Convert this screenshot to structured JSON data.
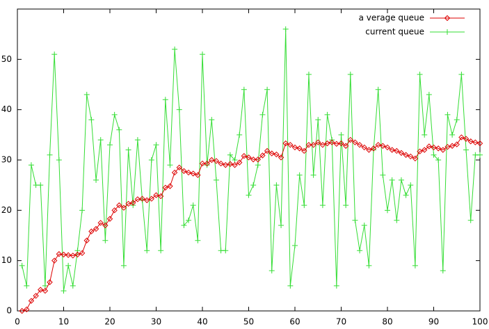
{
  "chart_data": {
    "type": "line",
    "x": [
      1,
      2,
      3,
      4,
      5,
      6,
      7,
      8,
      9,
      10,
      11,
      12,
      13,
      14,
      15,
      16,
      17,
      18,
      19,
      20,
      21,
      22,
      23,
      24,
      25,
      26,
      27,
      28,
      29,
      30,
      31,
      32,
      33,
      34,
      35,
      36,
      37,
      38,
      39,
      40,
      41,
      42,
      43,
      44,
      45,
      46,
      47,
      48,
      49,
      50,
      51,
      52,
      53,
      54,
      55,
      56,
      57,
      58,
      59,
      60,
      61,
      62,
      63,
      64,
      65,
      66,
      67,
      68,
      69,
      70,
      71,
      72,
      73,
      74,
      75,
      76,
      77,
      78,
      79,
      80,
      81,
      82,
      83,
      84,
      85,
      86,
      87,
      88,
      89,
      90,
      91,
      92,
      93,
      94,
      95,
      96,
      97,
      98,
      99,
      100
    ],
    "series": [
      {
        "name": "a verage queue",
        "color": "#dd0000",
        "marker": "diamond",
        "values": [
          0,
          0.3,
          2,
          3,
          4.2,
          4,
          5.7,
          10,
          11.3,
          11.2,
          11.1,
          11,
          11.2,
          11.5,
          14,
          15.8,
          16.3,
          17.5,
          17,
          18.3,
          20,
          21,
          20.5,
          21.3,
          21.5,
          22.2,
          22.3,
          22,
          22.3,
          23,
          22.8,
          24.5,
          24.8,
          27.5,
          28.5,
          27.8,
          27.5,
          27.3,
          27,
          29.3,
          29.3,
          30,
          29.8,
          29.3,
          29,
          29.2,
          29,
          29.5,
          30.8,
          30.5,
          30.1,
          30.1,
          30.9,
          31.8,
          31.3,
          31.1,
          30.5,
          33.3,
          33,
          32.5,
          32.3,
          31.8,
          33,
          33,
          33.5,
          33,
          33.3,
          33.5,
          33.2,
          33.3,
          32.8,
          34,
          33.5,
          33,
          32.5,
          32,
          32.3,
          33,
          32.8,
          32.5,
          32,
          31.8,
          31.4,
          31,
          30.7,
          30.3,
          31.7,
          32,
          32.7,
          32.5,
          32.3,
          32,
          32.6,
          32.8,
          33.1,
          34.5,
          34.2,
          33.7,
          33.5,
          33.3
        ]
      },
      {
        "name": "current queue",
        "color": "#33dd33",
        "marker": "plus",
        "values": [
          9,
          5,
          29,
          25,
          25,
          5,
          31,
          51,
          30,
          4,
          9,
          5,
          12,
          20,
          43,
          38,
          26,
          34,
          14,
          33,
          39,
          36,
          9,
          32,
          21,
          34,
          22,
          12,
          30,
          33,
          12,
          42,
          29,
          52,
          40,
          17,
          18,
          21,
          14,
          51,
          29,
          38,
          26,
          12,
          12,
          31,
          30,
          35,
          44,
          23,
          25,
          29,
          39,
          44,
          8,
          25,
          17,
          56,
          5,
          13,
          27,
          21,
          47,
          27,
          38,
          21,
          39,
          34,
          5,
          35,
          21,
          47,
          18,
          12,
          17,
          9,
          32,
          44,
          27,
          20,
          26,
          18,
          26,
          23,
          25,
          9,
          47,
          35,
          43,
          31,
          30,
          8,
          39,
          35,
          38,
          47,
          32,
          18,
          31,
          31
        ]
      }
    ],
    "xlim": [
      0,
      100
    ],
    "xticks": [
      0,
      10,
      20,
      30,
      40,
      50,
      60,
      70,
      80,
      90,
      100
    ],
    "ylim": [
      0,
      60
    ],
    "yticks": [
      0,
      10,
      20,
      30,
      40,
      50
    ],
    "legend": "top-right"
  }
}
